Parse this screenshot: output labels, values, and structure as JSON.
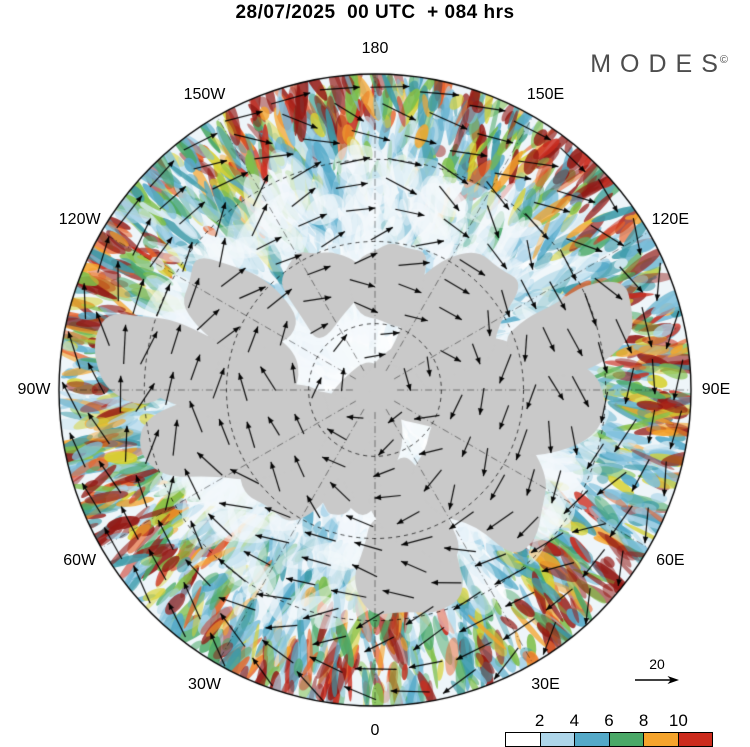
{
  "header": {
    "title": "28/07/2025  00 UTC  + 084 hrs",
    "logo_text": "MODES",
    "logo_mark": "©"
  },
  "chart_data": {
    "type": "heatmap",
    "subtype": "polar-stereographic-map-with-wind-vectors",
    "title": "28/07/2025 00 UTC + 084 hrs",
    "projection": {
      "center": "North Pole",
      "longitude_labels": [
        {
          "text": "180",
          "angle_deg": 0
        },
        {
          "text": "150E",
          "angle_deg": 30
        },
        {
          "text": "120E",
          "angle_deg": 60
        },
        {
          "text": "90E",
          "angle_deg": 90
        },
        {
          "text": "60E",
          "angle_deg": 120
        },
        {
          "text": "30E",
          "angle_deg": 150
        },
        {
          "text": "0",
          "angle_deg": 180
        },
        {
          "text": "30W",
          "angle_deg": 210
        },
        {
          "text": "60W",
          "angle_deg": 240
        },
        {
          "text": "90W",
          "angle_deg": 270
        },
        {
          "text": "120W",
          "angle_deg": 300
        },
        {
          "text": "150W",
          "angle_deg": 330
        }
      ]
    },
    "colorbar": {
      "tick_labels": [
        "2",
        "4",
        "6",
        "8",
        "10"
      ],
      "segment_colors": [
        "#ffffff",
        "#aed6ea",
        "#54a9c8",
        "#4aa867",
        "#f5a42c",
        "#cc2b1d"
      ],
      "position": "bottom-right"
    },
    "reference_vector": {
      "label": "20"
    },
    "field_palette": [
      "#ffffff",
      "#d6eaf3",
      "#aed6ea",
      "#7fc0dc",
      "#54a9c8",
      "#3d9aa8",
      "#4aa867",
      "#7fbf4a",
      "#d8d232",
      "#f5a42c",
      "#e8622a",
      "#cc2b1d",
      "#931a15"
    ],
    "land_color": "#c9c9c9",
    "legend_position": "bottom-right",
    "grid": "dashed latitude circles and dash-dot meridians every 30 degrees"
  }
}
